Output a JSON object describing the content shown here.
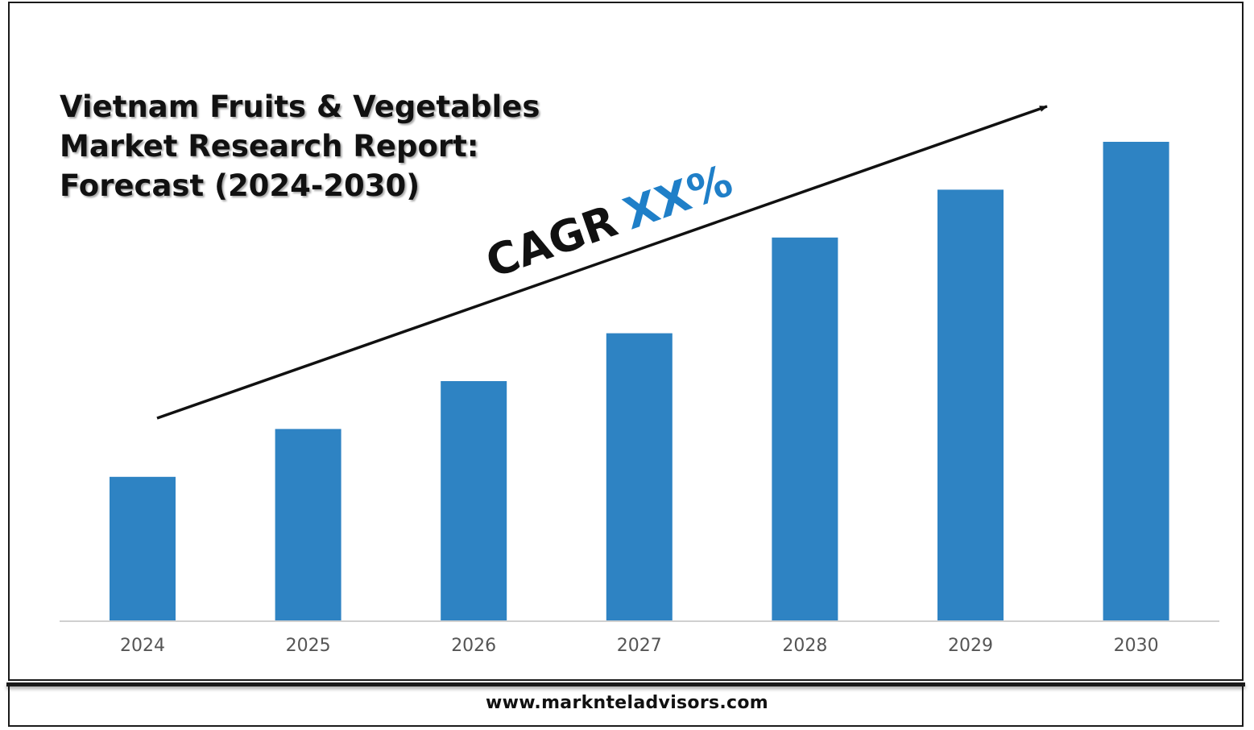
{
  "title_lines": [
    "Vietnam Fruits & Vegetables",
    "Market Research Report:",
    "Forecast (2024-2030)"
  ],
  "annotation": {
    "prefix": "CAGR",
    "value": "XX%"
  },
  "footer": {
    "website": "www.marknteladvisors.com"
  },
  "colors": {
    "bar": "#2e83c3",
    "cagr_value": "#1f7fc8",
    "axis": "#d0d0d0",
    "text": "#111111",
    "tick": "#555555"
  },
  "chart_data": {
    "type": "bar",
    "categories": [
      "2024",
      "2025",
      "2026",
      "2027",
      "2028",
      "2029",
      "2030"
    ],
    "values": [
      30,
      40,
      50,
      60,
      80,
      90,
      100
    ],
    "ylim": [
      0,
      100
    ],
    "grid": false,
    "legend": "none"
  }
}
